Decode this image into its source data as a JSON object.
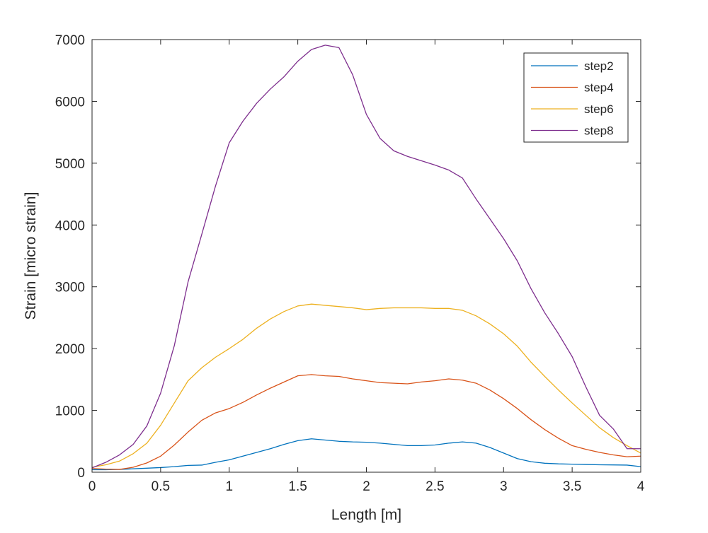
{
  "chart_data": {
    "type": "line",
    "title": "",
    "xlabel": "Length [m]",
    "ylabel": "Strain [micro strain]",
    "xlim": [
      0,
      4
    ],
    "ylim": [
      0,
      7000
    ],
    "xticks": [
      0,
      0.5,
      1,
      1.5,
      2,
      2.5,
      3,
      3.5,
      4
    ],
    "xtick_labels": [
      "0",
      "0.5",
      "1",
      "1.5",
      "2",
      "2.5",
      "3",
      "3.5",
      "4"
    ],
    "yticks": [
      0,
      1000,
      2000,
      3000,
      4000,
      5000,
      6000,
      7000
    ],
    "ytick_labels": [
      "0",
      "1000",
      "2000",
      "3000",
      "4000",
      "5000",
      "6000",
      "7000"
    ],
    "grid": false,
    "legend_position": "top-right",
    "x": [
      0,
      0.1,
      0.2,
      0.3,
      0.4,
      0.5,
      0.6,
      0.7,
      0.8,
      0.9,
      1.0,
      1.1,
      1.2,
      1.3,
      1.4,
      1.5,
      1.6,
      1.7,
      1.8,
      1.9,
      2.0,
      2.1,
      2.2,
      2.3,
      2.4,
      2.5,
      2.6,
      2.7,
      2.8,
      2.9,
      3.0,
      3.1,
      3.2,
      3.3,
      3.4,
      3.5,
      3.6,
      3.7,
      3.8,
      3.9,
      4.0
    ],
    "series": [
      {
        "name": "step2",
        "color": "#0072BD",
        "values": [
          40,
          40,
          45,
          55,
          65,
          75,
          90,
          110,
          115,
          160,
          200,
          260,
          320,
          380,
          450,
          510,
          540,
          520,
          500,
          490,
          485,
          470,
          450,
          430,
          430,
          440,
          470,
          490,
          470,
          400,
          310,
          220,
          170,
          145,
          135,
          130,
          125,
          120,
          118,
          115,
          90
        ]
      },
      {
        "name": "step4",
        "color": "#D95319",
        "values": [
          60,
          50,
          45,
          80,
          150,
          260,
          440,
          650,
          840,
          960,
          1030,
          1130,
          1250,
          1360,
          1460,
          1560,
          1580,
          1560,
          1550,
          1510,
          1480,
          1450,
          1440,
          1430,
          1460,
          1480,
          1510,
          1490,
          1440,
          1330,
          1190,
          1030,
          850,
          690,
          550,
          430,
          370,
          320,
          280,
          250,
          260
        ]
      },
      {
        "name": "step6",
        "color": "#EDB120",
        "values": [
          80,
          120,
          180,
          300,
          470,
          760,
          1120,
          1480,
          1690,
          1860,
          2000,
          2150,
          2330,
          2480,
          2600,
          2690,
          2720,
          2700,
          2680,
          2660,
          2630,
          2650,
          2660,
          2660,
          2660,
          2650,
          2650,
          2620,
          2530,
          2400,
          2240,
          2040,
          1780,
          1550,
          1330,
          1120,
          920,
          720,
          560,
          430,
          310
        ]
      },
      {
        "name": "step8",
        "color": "#7E2F8E",
        "values": [
          70,
          160,
          280,
          450,
          750,
          1280,
          2050,
          3080,
          3850,
          4630,
          5330,
          5680,
          5970,
          6200,
          6400,
          6650,
          6840,
          6910,
          6870,
          6430,
          5790,
          5400,
          5200,
          5110,
          5040,
          4970,
          4890,
          4760,
          4420,
          4100,
          3780,
          3420,
          2970,
          2580,
          2240,
          1870,
          1380,
          920,
          700,
          380,
          380
        ]
      }
    ]
  }
}
